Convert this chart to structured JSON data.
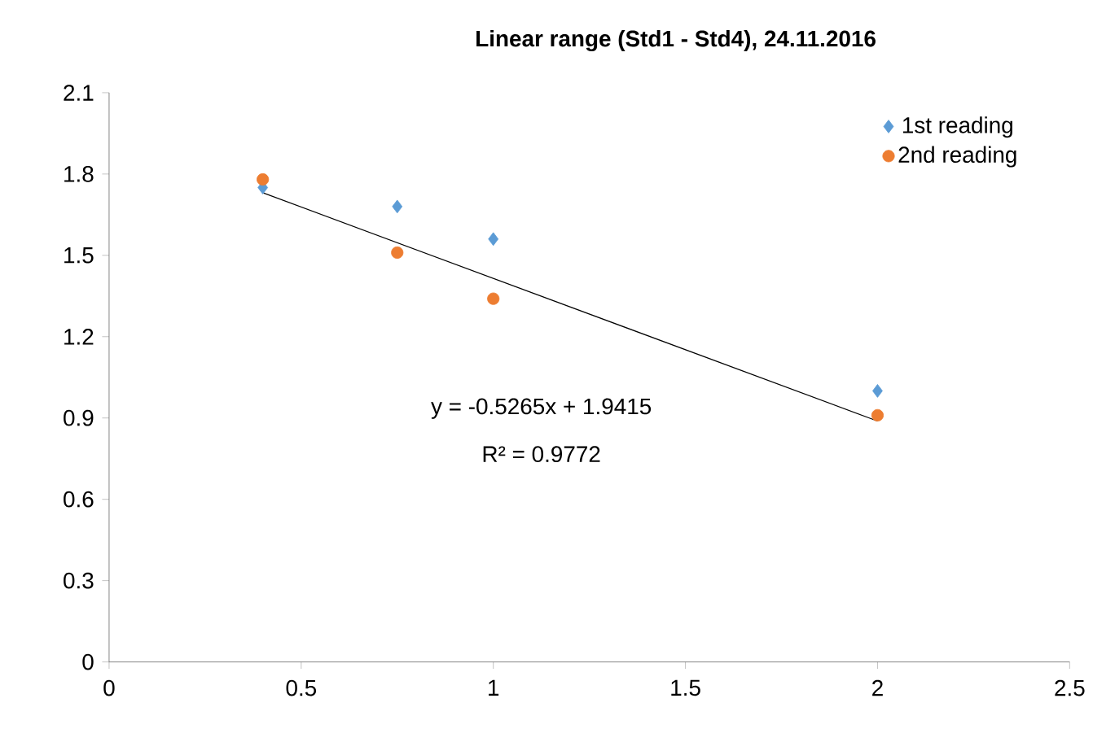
{
  "chart_data": {
    "type": "scatter",
    "title": "Linear range (Std1 - Std4), 24.11.2016",
    "series": [
      {
        "name": "1st reading",
        "color": "#5b9bd5",
        "marker": "diamond",
        "x": [
          0.4,
          0.75,
          1,
          2
        ],
        "values": [
          1.75,
          1.68,
          1.56,
          1.0
        ]
      },
      {
        "name": "2nd reading",
        "color": "#ed7d31",
        "marker": "circle",
        "x": [
          0.4,
          0.75,
          1,
          2
        ],
        "values": [
          1.78,
          1.51,
          1.34,
          0.91
        ]
      },
      {
        "type": "line",
        "color": "#000000",
        "marker": "none",
        "x": [
          0.4,
          2
        ],
        "values": [
          1.731,
          0.8885
        ]
      }
    ],
    "annotations": [
      "y = -0.5265x + 1.9415",
      "R² = 0.9772"
    ],
    "xlim": [
      0,
      2.5
    ],
    "ylim": [
      0,
      2.1
    ],
    "xticks": [
      0,
      0.5,
      1,
      1.5,
      2,
      2.5
    ],
    "yticks": [
      0,
      0.3,
      0.6,
      0.9,
      1.2,
      1.5,
      1.8,
      2.1
    ],
    "grid": false,
    "legend": "top right"
  }
}
